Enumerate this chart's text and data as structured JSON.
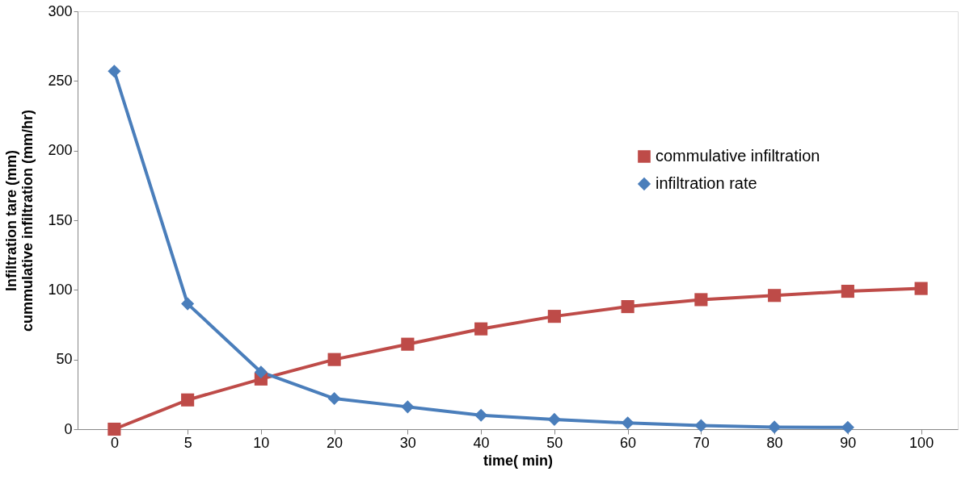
{
  "chart_data": {
    "type": "line",
    "xlabel": "time( min)",
    "ylabel": "Infiltration tare (mm)\ncummulative infiltration (mm/hr)",
    "categories": [
      "0",
      "5",
      "10",
      "20",
      "30",
      "40",
      "50",
      "60",
      "70",
      "80",
      "90",
      "100"
    ],
    "ylim": [
      0,
      300
    ],
    "yticks": [
      0,
      50,
      100,
      150,
      200,
      250,
      300
    ],
    "grid": false,
    "legend": "top right",
    "line_style": "solid",
    "series": [
      {
        "name": "commulative infiltration",
        "color": "#be4b48",
        "marker": "square",
        "values": [
          0,
          21,
          36,
          50,
          61,
          72,
          81,
          88,
          93,
          96,
          99,
          101
        ]
      },
      {
        "name": "infiltration rate",
        "color": "#4a7ebb",
        "marker": "diamond",
        "values": [
          257,
          90,
          41,
          22,
          16,
          10,
          7,
          4.5,
          2.6,
          1.5,
          1.3,
          null
        ]
      }
    ]
  }
}
